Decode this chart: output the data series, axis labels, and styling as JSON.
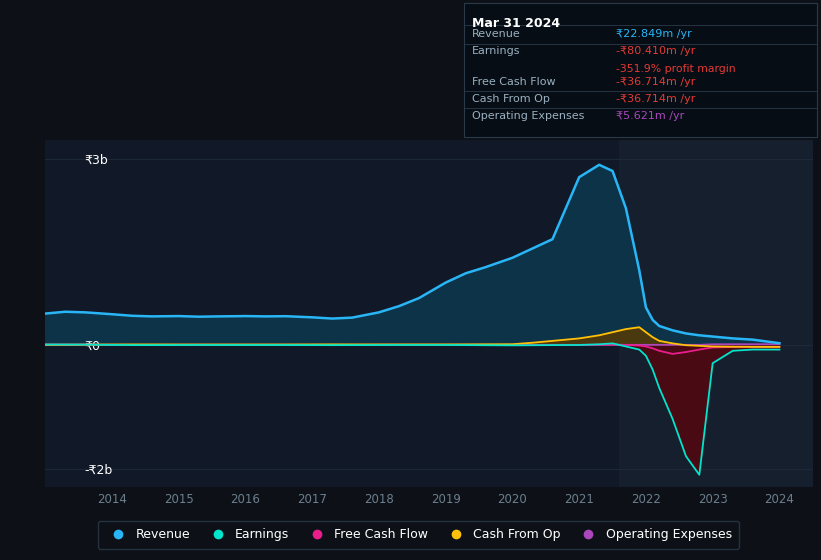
{
  "background_color": "#0d1117",
  "plot_bg_color": "#111827",
  "grid_color": "#1e2d3d",
  "years": [
    2013.0,
    2013.3,
    2013.6,
    2014.0,
    2014.3,
    2014.6,
    2015.0,
    2015.3,
    2015.6,
    2016.0,
    2016.3,
    2016.6,
    2017.0,
    2017.3,
    2017.6,
    2018.0,
    2018.3,
    2018.6,
    2019.0,
    2019.3,
    2019.6,
    2020.0,
    2020.3,
    2020.6,
    2021.0,
    2021.3,
    2021.5,
    2021.7,
    2021.9,
    2022.0,
    2022.1,
    2022.2,
    2022.4,
    2022.6,
    2022.8,
    2023.0,
    2023.3,
    2023.6,
    2024.0
  ],
  "revenue": [
    500,
    530,
    520,
    490,
    465,
    455,
    460,
    450,
    455,
    460,
    455,
    458,
    440,
    420,
    435,
    520,
    620,
    750,
    1000,
    1150,
    1250,
    1400,
    1550,
    1700,
    2700,
    2900,
    2800,
    2200,
    1200,
    600,
    400,
    300,
    230,
    180,
    150,
    130,
    100,
    80,
    22.849
  ],
  "earnings": [
    2,
    1,
    0,
    -5,
    -8,
    -8,
    -7,
    -6,
    -7,
    -7,
    -7,
    -7,
    -8,
    -9,
    -8,
    -7,
    -6,
    -6,
    -6,
    -8,
    -10,
    -12,
    -10,
    -8,
    -6,
    5,
    20,
    -30,
    -80,
    -180,
    -400,
    -700,
    -1200,
    -1800,
    -2100,
    -300,
    -100,
    -80,
    -80.41
  ],
  "free_cash_flow": [
    3,
    2,
    1,
    -3,
    -4,
    -4,
    -3,
    -3,
    -3,
    -3,
    -3,
    -3,
    -4,
    -5,
    -4,
    -3,
    -3,
    -3,
    -3,
    -4,
    -5,
    -6,
    -5,
    -5,
    -5,
    -2,
    0,
    -5,
    -15,
    -30,
    -60,
    -100,
    -150,
    -120,
    -80,
    -45,
    -38,
    -37,
    -36.714
  ],
  "cash_from_op": [
    -3,
    -2,
    -1,
    2,
    3,
    3,
    2,
    2,
    2,
    2,
    2,
    2,
    3,
    4,
    3,
    3,
    3,
    3,
    3,
    4,
    5,
    6,
    30,
    60,
    100,
    150,
    200,
    250,
    280,
    200,
    120,
    60,
    20,
    -10,
    -20,
    -30,
    -34,
    -36,
    -36.714
  ],
  "operating_expenses": [
    -5,
    -5,
    -5,
    -5,
    -5,
    -5,
    -4,
    -4,
    -4,
    -4,
    -4,
    -4,
    -4,
    -4,
    -4,
    -4,
    -4,
    -4,
    -4,
    -4,
    -4,
    -4,
    -4,
    -4,
    -4,
    -4,
    -4,
    -4,
    -4,
    -4,
    -4,
    -4,
    -4,
    -4,
    -4,
    5,
    5.5,
    5.6,
    5.621
  ],
  "revenue_color": "#29b6f6",
  "revenue_fill": "#0d3349",
  "earnings_color": "#00e5cc",
  "free_cash_flow_color": "#e91e8c",
  "cash_from_op_color": "#ffc107",
  "operating_expenses_color": "#ab47bc",
  "earnings_fill_neg": "#4a0a14",
  "cash_fill_pos": "#5a3a00",
  "info_box_bg": "#060d14",
  "info_box_border": "#2a3a4a",
  "shade_region_color": "#151f2e",
  "yticks_labels": [
    "₹3b",
    "₹0",
    "-₹2b"
  ],
  "yticks_values": [
    3000,
    0,
    -2000
  ],
  "xtick_labels": [
    "2014",
    "2015",
    "2016",
    "2017",
    "2018",
    "2019",
    "2020",
    "2021",
    "2022",
    "2023",
    "2024"
  ],
  "xtick_values": [
    2014,
    2015,
    2016,
    2017,
    2018,
    2019,
    2020,
    2021,
    2022,
    2023,
    2024
  ],
  "ylim": [
    -2300,
    3300
  ],
  "xlim": [
    2013.0,
    2024.5
  ],
  "shade_start": 2021.6,
  "shade_end": 2024.5,
  "legend_items": [
    "Revenue",
    "Earnings",
    "Free Cash Flow",
    "Cash From Op",
    "Operating Expenses"
  ],
  "legend_colors": [
    "#29b6f6",
    "#00e5cc",
    "#e91e8c",
    "#ffc107",
    "#ab47bc"
  ],
  "info_title": "Mar 31 2024",
  "info_rows": [
    {
      "label": "Revenue",
      "value": "₹22.849m /yr",
      "value_color": "#29b6f6"
    },
    {
      "label": "Earnings",
      "value": "-₹80.410m /yr",
      "value_color": "#e53935"
    },
    {
      "label": "",
      "value": "-351.9% profit margin",
      "value_color": "#e53935",
      "sub": true
    },
    {
      "label": "Free Cash Flow",
      "value": "-₹36.714m /yr",
      "value_color": "#e53935"
    },
    {
      "label": "Cash From Op",
      "value": "-₹36.714m /yr",
      "value_color": "#e53935"
    },
    {
      "label": "Operating Expenses",
      "value": "₹5.621m /yr",
      "value_color": "#ab47bc"
    }
  ]
}
